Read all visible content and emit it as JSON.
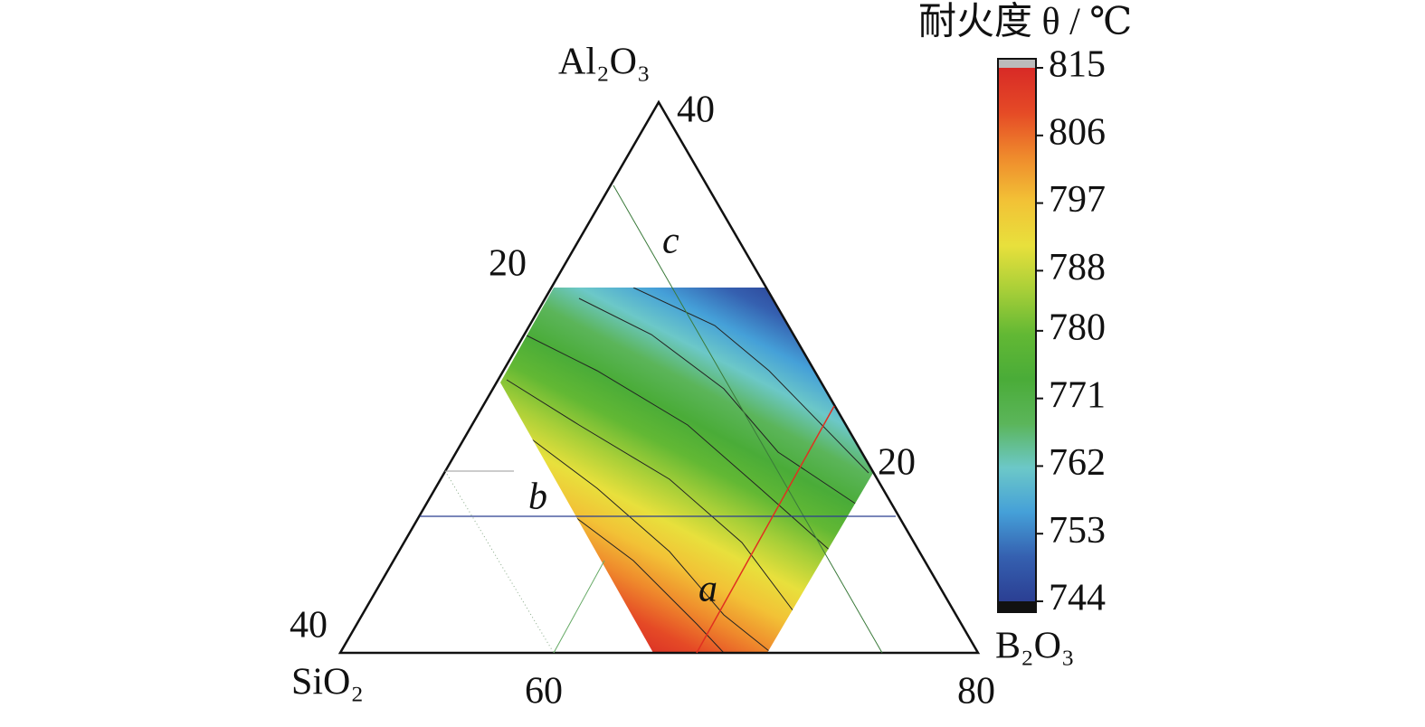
{
  "chart_data": {
    "type": "ternary-contour",
    "title": "耐火度 θ / ℃",
    "vertex_labels": [
      "Al₂O₃",
      "SiO₂",
      "B₂O₃"
    ],
    "ternary_ticks": [
      40,
      20,
      40,
      60,
      80,
      20
    ],
    "line_labels": [
      "a",
      "b",
      "c"
    ],
    "line_colors": [
      "#e03020",
      "#2a3f8f",
      "#3a7a3a"
    ],
    "colorbar": {
      "lim": [
        744,
        815
      ],
      "ticks": [
        815,
        806,
        797,
        788,
        780,
        771,
        762,
        753,
        744
      ],
      "colormap": [
        "#2b3f93",
        "#3560b0",
        "#45a0d8",
        "#6cc8c8",
        "#5bb55a",
        "#4aac38",
        "#62b834",
        "#a8cf38",
        "#e8e03c",
        "#f2c236",
        "#ef8a2c",
        "#e54a26",
        "#d82a26"
      ]
    }
  }
}
